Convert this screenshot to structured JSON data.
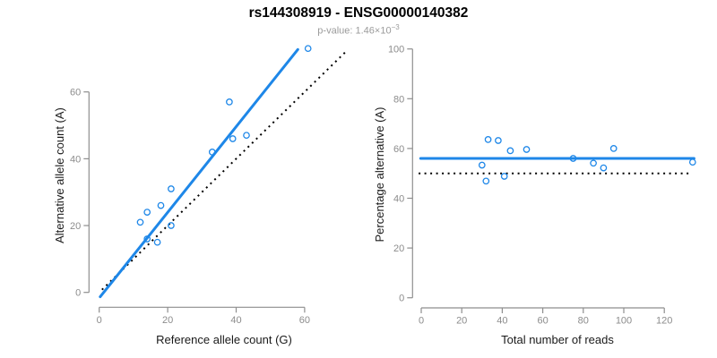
{
  "header": {
    "title": "rs144308919 - ENSG00000140382",
    "subtitle_base": "p-value: 1.46×10",
    "subtitle_exponent": "−3"
  },
  "colors": {
    "fit_line_blue": "#1e87e8",
    "point_blue": "#1e87e8",
    "reference_line_black": "#000000",
    "axis_gray": "#8e8e8e",
    "tick_text_gray": "#8c8c8c",
    "axis_title_black": "#1a1a1a",
    "subtitle_gray": "#9b9b9b"
  },
  "chart_data": [
    {
      "type": "scatter",
      "title": "",
      "xlabel": "Reference allele count (G)",
      "ylabel": "Alternative allele count (A)",
      "xticks": [
        0,
        20,
        40,
        60
      ],
      "yticks": [
        0,
        20,
        40,
        60
      ],
      "xlim": [
        0,
        72
      ],
      "ylim": [
        0,
        73
      ],
      "grid": false,
      "legend": "none",
      "points": [
        [
          12,
          21
        ],
        [
          14,
          24
        ],
        [
          14,
          16
        ],
        [
          17,
          15
        ],
        [
          18,
          26
        ],
        [
          21,
          31
        ],
        [
          21,
          20
        ],
        [
          33,
          42
        ],
        [
          38,
          57
        ],
        [
          39,
          46
        ],
        [
          43,
          47
        ],
        [
          61,
          73
        ]
      ],
      "fit_line": {
        "x1": 0.3,
        "y1": -1.3,
        "x2": 58.0,
        "y2": 72.7,
        "style": "solid"
      },
      "reference_line": {
        "x1": 0.8,
        "y1": 0.8,
        "x2": 72.0,
        "y2": 72.0,
        "style": "dotted",
        "meaning": "identity y = x"
      }
    },
    {
      "type": "scatter",
      "title": "",
      "xlabel": "Total number of reads",
      "ylabel": "Percentage alternative (A)",
      "xticks": [
        0,
        20,
        40,
        60,
        80,
        100,
        120
      ],
      "yticks": [
        0,
        20,
        40,
        60,
        80,
        100
      ],
      "xlim": [
        0,
        135
      ],
      "ylim": [
        0,
        100
      ],
      "grid": false,
      "legend": "none",
      "points": [
        [
          33,
          63.6
        ],
        [
          38,
          63.2
        ],
        [
          30,
          53.3
        ],
        [
          32,
          46.9
        ],
        [
          44,
          59.1
        ],
        [
          52,
          59.6
        ],
        [
          41,
          48.8
        ],
        [
          75,
          56.0
        ],
        [
          95,
          60.0
        ],
        [
          85,
          54.1
        ],
        [
          90,
          52.2
        ],
        [
          134,
          54.5
        ]
      ],
      "fit_line": {
        "x1": -0.3,
        "y1": 56.0,
        "x2": 134.7,
        "y2": 56.0,
        "style": "solid"
      },
      "reference_line": {
        "x1": -1.3,
        "y1": 50.0,
        "x2": 132.7,
        "y2": 50.0,
        "style": "dotted",
        "meaning": "null 50%"
      }
    }
  ]
}
